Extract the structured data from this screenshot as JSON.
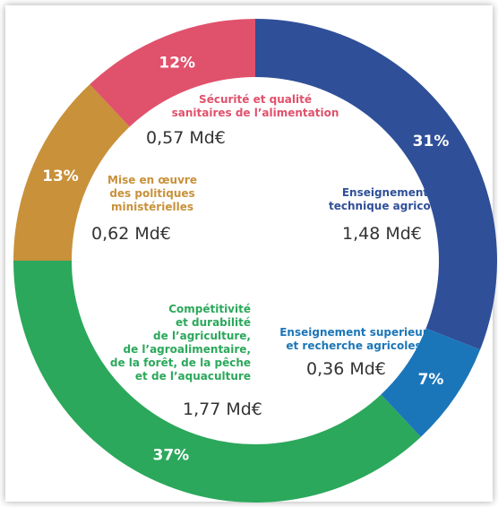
{
  "chart_data": {
    "type": "donut",
    "categories": [
      "Enseignement\ntechnique agricole",
      "Enseignement superieur\net recherche agricoles",
      "Compétitivité\net durabilité\nde l’agriculture,\nde l’agroalimentaire,\nde la forêt, de la pêche\net de l’aquaculture",
      "Mise en œuvre\ndes politiques\nministérielles",
      "Sécurité et qualité\nsanitaires de l’alimentation"
    ],
    "values": [
      31,
      7,
      37,
      13,
      12
    ],
    "value_labels": [
      "31%",
      "7%",
      "37%",
      "13%",
      "12%"
    ],
    "amount_labels": [
      "1,48 Md€",
      "0,36 Md€",
      "1,77 Md€",
      "0,62 Md€",
      "0,57 Md€"
    ],
    "colors": [
      "#2f4f98",
      "#1b76b9",
      "#2ba85b",
      "#c8913a",
      "#e0516c"
    ]
  }
}
